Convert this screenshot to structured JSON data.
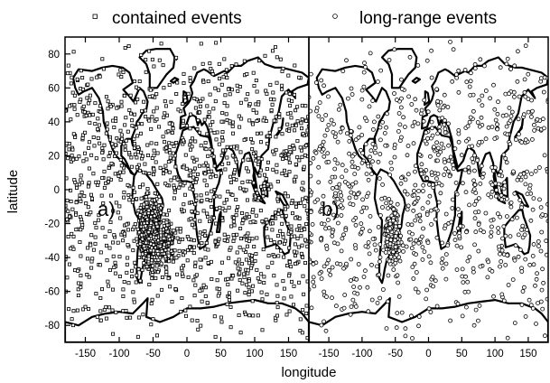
{
  "chart_data": [
    {
      "type": "scatter",
      "panel_label": "a)",
      "legend": "contained events",
      "marker": "square",
      "xlabel": "longitude",
      "ylabel": "latitude",
      "xlim": [
        -180,
        180
      ],
      "ylim": [
        -90,
        90
      ],
      "xticks": [
        "-150",
        "-100",
        "-50",
        "0",
        "50",
        "100",
        "150"
      ],
      "yticks": [
        "80",
        "60",
        "40",
        "20",
        "0",
        "-20",
        "-40",
        "-60",
        "-80"
      ],
      "background_density": 1400,
      "clusters": [
        {
          "lon": -55,
          "lat": -25,
          "lon_spread": 10,
          "lat_spread": 13,
          "count": 1100
        },
        {
          "lon": -35,
          "lat": -32,
          "lon_spread": 12,
          "lat_spread": 9,
          "count": 250
        }
      ]
    },
    {
      "type": "scatter",
      "panel_label": "b)",
      "legend": "long-range events",
      "marker": "circle",
      "xlabel": "longitude",
      "ylabel": "",
      "xlim": [
        -180,
        180
      ],
      "ylim": [
        -90,
        90
      ],
      "xticks": [
        "-150",
        "-100",
        "-50",
        "0",
        "50",
        "100",
        "150"
      ],
      "background_density": 900,
      "clusters": [
        {
          "lon": -55,
          "lat": -28,
          "lon_spread": 8,
          "lat_spread": 12,
          "count": 260
        }
      ]
    }
  ]
}
